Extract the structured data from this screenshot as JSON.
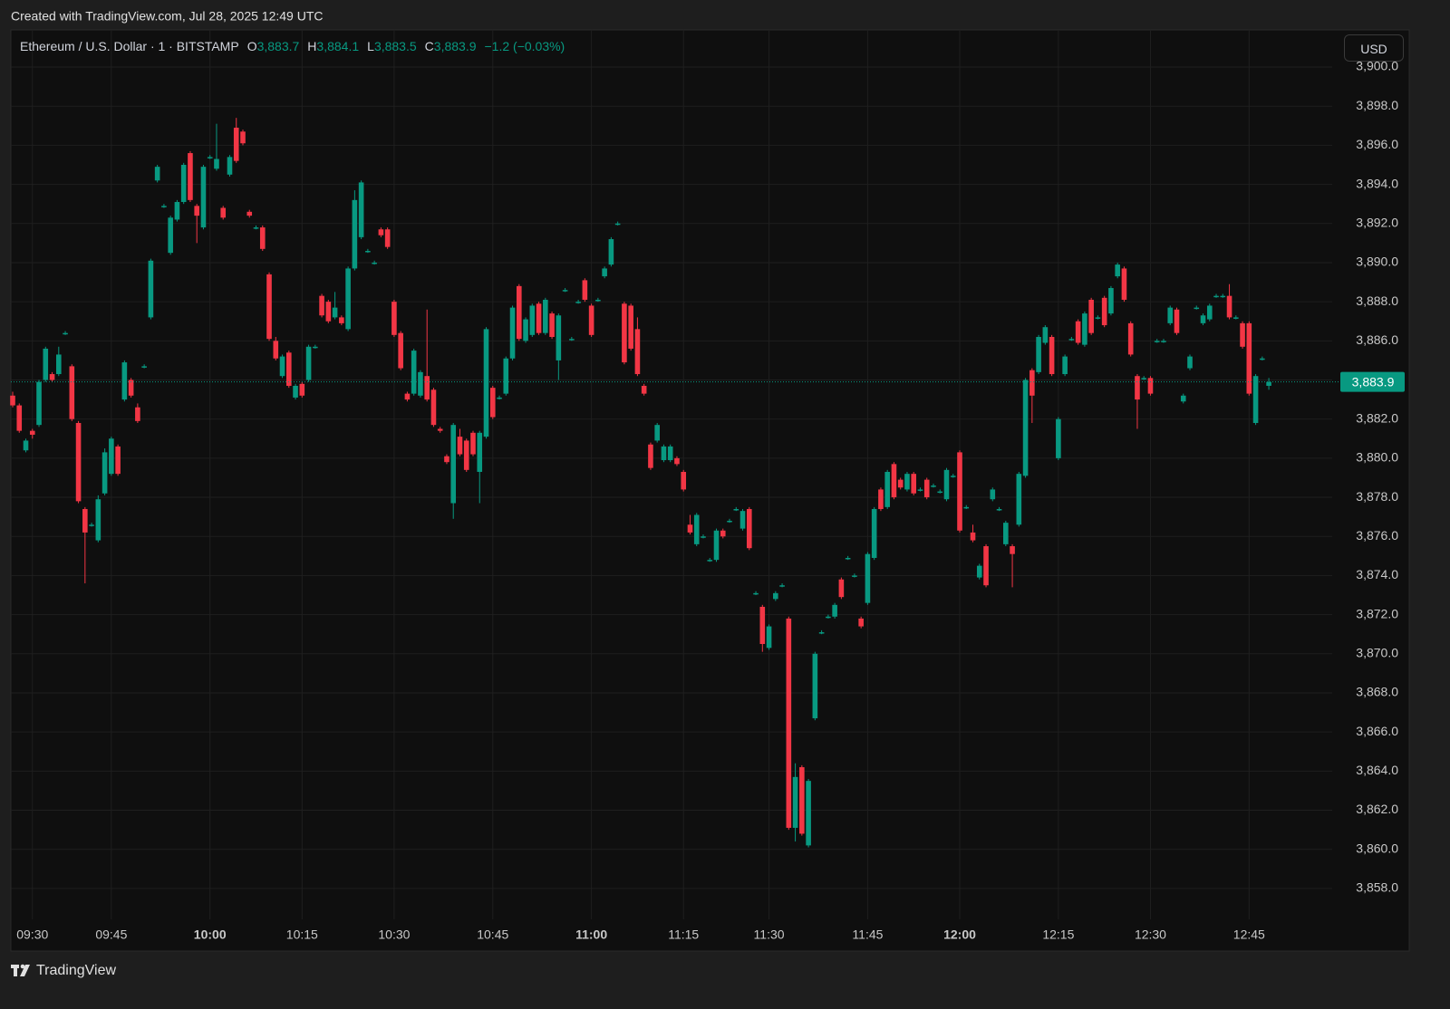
{
  "page": {
    "credit": "Created with TradingView.com, Jul 28, 2025 12:49 UTC",
    "currency": "USD",
    "brand": "TradingView"
  },
  "chart_data": {
    "type": "candlestick",
    "title": "Ethereum / U.S. Dollar · 1 · BITSTAMP",
    "legend": [
      {
        "key": "O",
        "value": 3883.7,
        "label": "3,883.7"
      },
      {
        "key": "H",
        "value": 3884.1,
        "label": "3,884.1"
      },
      {
        "key": "L",
        "value": 3883.5,
        "label": "3,883.5"
      },
      {
        "key": "C",
        "value": 3883.9,
        "label": "3,883.9"
      }
    ],
    "change": {
      "value": -1.2,
      "label": "−1.2 (−0.03%)"
    },
    "last_price": {
      "value": 3883.9,
      "label": "3,883.9"
    },
    "up_color": "#089981",
    "down_color": "#f23645",
    "grid": true,
    "ylim": [
      3854.8,
      3901.9
    ],
    "yticks": [
      {
        "value": 3858,
        "label": "3,858.0"
      },
      {
        "value": 3860,
        "label": "3,860.0"
      },
      {
        "value": 3862,
        "label": "3,862.0"
      },
      {
        "value": 3864,
        "label": "3,864.0"
      },
      {
        "value": 3866,
        "label": "3,866.0"
      },
      {
        "value": 3868,
        "label": "3,868.0"
      },
      {
        "value": 3870,
        "label": "3,870.0"
      },
      {
        "value": 3872,
        "label": "3,872.0"
      },
      {
        "value": 3874,
        "label": "3,874.0"
      },
      {
        "value": 3876,
        "label": "3,876.0"
      },
      {
        "value": 3878,
        "label": "3,878.0"
      },
      {
        "value": 3880,
        "label": "3,880.0"
      },
      {
        "value": 3882,
        "label": "3,882.0"
      },
      {
        "value": 3884,
        "label": "3,884.0"
      },
      {
        "value": 3886,
        "label": "3,886.0"
      },
      {
        "value": 3888,
        "label": "3,888.0"
      },
      {
        "value": 3890,
        "label": "3,890.0"
      },
      {
        "value": 3892,
        "label": "3,892.0"
      },
      {
        "value": 3894,
        "label": "3,894.0"
      },
      {
        "value": 3896,
        "label": "3,896.0"
      },
      {
        "value": 3898,
        "label": "3,898.0"
      },
      {
        "value": 3900,
        "label": "3,900.0"
      }
    ],
    "xticks": [
      {
        "value": 3,
        "label": "09:30"
      },
      {
        "value": 15,
        "label": "09:45"
      },
      {
        "value": 30,
        "label": "10:00"
      },
      {
        "value": 44,
        "label": "10:15"
      },
      {
        "value": 58,
        "label": "10:30"
      },
      {
        "value": 73,
        "label": "10:45"
      },
      {
        "value": 88,
        "label": "11:00"
      },
      {
        "value": 102,
        "label": "11:15"
      },
      {
        "value": 115,
        "label": "11:30"
      },
      {
        "value": 130,
        "label": "11:45"
      },
      {
        "value": 144,
        "label": "12:00"
      },
      {
        "value": 159,
        "label": "12:15"
      },
      {
        "value": 173,
        "label": "12:30"
      },
      {
        "value": 188,
        "label": "12:45"
      }
    ],
    "ohlc": [
      [
        3883.2,
        3883.4,
        3882.6,
        3882.7
      ],
      [
        3882.7,
        3882.8,
        3881.3,
        3881.4
      ],
      [
        3880.4,
        3881.0,
        3880.3,
        3880.9
      ],
      [
        3881.4,
        3881.5,
        3881.0,
        3881.2
      ],
      [
        3881.7,
        3884.0,
        3881.6,
        3883.9
      ],
      [
        3884.0,
        3885.7,
        3883.9,
        3885.6
      ],
      [
        3884.3,
        3884.4,
        3883.9,
        3884.0
      ],
      [
        3884.3,
        3885.7,
        3884.2,
        3885.3
      ],
      [
        3886.4,
        3886.5,
        3886.3,
        3886.4
      ],
      [
        3884.7,
        3884.8,
        3881.9,
        3882.0
      ],
      [
        3881.8,
        3881.9,
        3877.7,
        3877.8
      ],
      [
        3877.4,
        3877.5,
        3873.6,
        3876.2
      ],
      [
        3876.6,
        3876.7,
        3876.5,
        3876.6
      ],
      [
        3875.8,
        3878.1,
        3875.7,
        3877.9
      ],
      [
        3878.2,
        3880.5,
        3878.1,
        3880.3
      ],
      [
        3879.2,
        3881.1,
        3879.1,
        3881.0
      ],
      [
        3880.6,
        3880.7,
        3879.1,
        3879.2
      ],
      [
        3883.0,
        3885.0,
        3882.9,
        3884.9
      ],
      [
        3884.0,
        3884.1,
        3883.1,
        3883.2
      ],
      [
        3882.6,
        3882.8,
        3881.8,
        3881.9
      ],
      [
        3884.7,
        3884.8,
        3884.6,
        3884.7
      ],
      [
        3887.2,
        3890.2,
        3887.1,
        3890.1
      ],
      [
        3894.2,
        3895.0,
        3894.1,
        3894.9
      ],
      [
        3892.9,
        3893.0,
        3892.8,
        3892.9
      ],
      [
        3890.5,
        3892.4,
        3890.4,
        3892.3
      ],
      [
        3892.2,
        3893.2,
        3892.1,
        3893.1
      ],
      [
        3893.1,
        3895.1,
        3893.0,
        3895.0
      ],
      [
        3895.6,
        3895.7,
        3893.1,
        3893.2
      ],
      [
        3892.9,
        3893.0,
        3891.0,
        3892.4
      ],
      [
        3891.8,
        3895.0,
        3891.7,
        3894.9
      ],
      [
        3895.4,
        3895.5,
        3895.3,
        3895.4
      ],
      [
        3894.8,
        3897.1,
        3894.7,
        3895.3
      ],
      [
        3892.8,
        3892.9,
        3892.2,
        3892.3
      ],
      [
        3894.5,
        3895.5,
        3894.4,
        3895.4
      ],
      [
        3896.9,
        3897.4,
        3895.1,
        3895.2
      ],
      [
        3896.7,
        3896.8,
        3896.0,
        3896.1
      ],
      [
        3892.6,
        3892.7,
        3892.3,
        3892.4
      ],
      [
        3891.8,
        3891.9,
        3891.7,
        3891.8
      ],
      [
        3891.8,
        3891.9,
        3890.6,
        3890.7
      ],
      [
        3889.4,
        3889.5,
        3886.0,
        3886.1
      ],
      [
        3886.0,
        3886.2,
        3885.0,
        3885.1
      ],
      [
        3884.2,
        3885.3,
        3884.1,
        3885.2
      ],
      [
        3885.4,
        3885.5,
        3883.6,
        3883.7
      ],
      [
        3883.1,
        3883.8,
        3883.0,
        3883.7
      ],
      [
        3883.8,
        3883.9,
        3883.1,
        3883.2
      ],
      [
        3884.0,
        3885.8,
        3883.9,
        3885.7
      ],
      [
        3885.7,
        3885.8,
        3885.6,
        3885.7
      ],
      [
        3888.3,
        3888.4,
        3887.2,
        3887.3
      ],
      [
        3888.0,
        3888.1,
        3886.9,
        3887.0
      ],
      [
        3887.2,
        3888.5,
        3887.1,
        3887.7
      ],
      [
        3887.2,
        3887.3,
        3886.8,
        3886.9
      ],
      [
        3886.6,
        3889.8,
        3886.5,
        3889.7
      ],
      [
        3889.7,
        3893.7,
        3889.6,
        3893.2
      ],
      [
        3891.3,
        3894.2,
        3891.2,
        3894.1
      ],
      [
        3890.6,
        3890.7,
        3890.5,
        3890.6
      ],
      [
        3890.0,
        3890.1,
        3889.9,
        3890.0
      ],
      [
        3891.7,
        3891.8,
        3891.3,
        3891.4
      ],
      [
        3891.7,
        3891.8,
        3890.7,
        3890.8
      ],
      [
        3888.0,
        3888.1,
        3886.2,
        3886.3
      ],
      [
        3886.4,
        3886.5,
        3884.5,
        3884.6
      ],
      [
        3883.3,
        3883.4,
        3882.9,
        3883.0
      ],
      [
        3883.3,
        3885.6,
        3883.2,
        3885.5
      ],
      [
        3883.2,
        3884.5,
        3883.1,
        3884.4
      ],
      [
        3884.2,
        3887.6,
        3882.9,
        3883.0
      ],
      [
        3883.5,
        3883.6,
        3881.6,
        3881.7
      ],
      [
        3881.5,
        3881.6,
        3881.3,
        3881.4
      ],
      [
        3880.1,
        3880.2,
        3879.7,
        3879.8
      ],
      [
        3877.7,
        3881.8,
        3876.9,
        3881.7
      ],
      [
        3881.1,
        3881.5,
        3880.1,
        3880.2
      ],
      [
        3880.9,
        3881.0,
        3879.3,
        3879.4
      ],
      [
        3881.3,
        3881.4,
        3880.1,
        3880.2
      ],
      [
        3879.3,
        3881.4,
        3877.7,
        3881.3
      ],
      [
        3881.1,
        3886.7,
        3881.0,
        3886.6
      ],
      [
        3883.6,
        3883.7,
        3882.0,
        3882.1
      ],
      [
        3883.1,
        3883.2,
        3883.0,
        3883.1
      ],
      [
        3883.3,
        3885.2,
        3883.2,
        3885.1
      ],
      [
        3885.1,
        3887.8,
        3885.0,
        3887.7
      ],
      [
        3888.8,
        3888.9,
        3886.0,
        3886.1
      ],
      [
        3886.0,
        3887.2,
        3885.9,
        3887.1
      ],
      [
        3886.3,
        3887.9,
        3886.2,
        3887.8
      ],
      [
        3887.9,
        3888.0,
        3886.3,
        3886.4
      ],
      [
        3886.4,
        3888.2,
        3886.3,
        3888.1
      ],
      [
        3887.4,
        3887.5,
        3886.1,
        3886.2
      ],
      [
        3885.0,
        3887.4,
        3884.0,
        3887.3
      ],
      [
        3888.6,
        3888.7,
        3888.5,
        3888.6
      ],
      [
        3886.1,
        3886.2,
        3886.0,
        3886.1
      ],
      [
        3888.0,
        3888.1,
        3887.9,
        3888.0
      ],
      [
        3889.1,
        3889.2,
        3888.0,
        3888.1
      ],
      [
        3887.8,
        3887.9,
        3886.2,
        3886.3
      ],
      [
        3888.1,
        3888.2,
        3888.0,
        3888.1
      ],
      [
        3889.3,
        3889.8,
        3889.2,
        3889.7
      ],
      [
        3889.9,
        3891.3,
        3889.8,
        3891.2
      ],
      [
        3892.0,
        3892.1,
        3891.9,
        3892.0
      ],
      [
        3887.9,
        3888.0,
        3884.8,
        3884.9
      ],
      [
        3887.8,
        3887.9,
        3885.5,
        3885.6
      ],
      [
        3886.6,
        3887.2,
        3884.2,
        3884.3
      ],
      [
        3883.7,
        3883.8,
        3883.2,
        3883.3
      ],
      [
        3880.7,
        3880.8,
        3879.4,
        3879.5
      ],
      [
        3880.9,
        3881.8,
        3880.8,
        3881.7
      ],
      [
        3879.9,
        3880.7,
        3879.8,
        3880.6
      ],
      [
        3879.9,
        3880.7,
        3879.8,
        3880.6
      ],
      [
        3880.0,
        3880.1,
        3879.6,
        3879.7
      ],
      [
        3879.3,
        3879.4,
        3878.3,
        3878.4
      ],
      [
        3876.6,
        3877.1,
        3876.1,
        3876.2
      ],
      [
        3875.6,
        3877.2,
        3875.5,
        3877.1
      ],
      [
        3876.0,
        3876.1,
        3875.9,
        3876.0
      ],
      [
        3874.8,
        3874.9,
        3874.7,
        3874.8
      ],
      [
        3874.8,
        3876.4,
        3874.7,
        3876.3
      ],
      [
        3876.3,
        3876.4,
        3875.9,
        3876.0
      ],
      [
        3876.8,
        3876.9,
        3876.7,
        3876.8
      ],
      [
        3877.4,
        3877.5,
        3877.3,
        3877.4
      ],
      [
        3876.4,
        3877.4,
        3876.3,
        3877.3
      ],
      [
        3877.4,
        3877.5,
        3875.3,
        3875.4
      ],
      [
        3873.1,
        3873.2,
        3873.0,
        3873.1
      ],
      [
        3872.4,
        3872.5,
        3870.1,
        3870.5
      ],
      [
        3870.3,
        3871.5,
        3870.2,
        3871.4
      ],
      [
        3872.8,
        3873.2,
        3872.7,
        3873.1
      ],
      [
        3873.5,
        3873.6,
        3873.4,
        3873.5
      ],
      [
        3871.8,
        3871.9,
        3861.0,
        3861.1
      ],
      [
        3861.1,
        3864.4,
        3860.4,
        3863.7
      ],
      [
        3864.2,
        3864.3,
        3860.7,
        3860.8
      ],
      [
        3860.2,
        3863.6,
        3860.1,
        3863.5
      ],
      [
        3866.7,
        3870.1,
        3866.6,
        3870.0
      ],
      [
        3871.1,
        3871.2,
        3871.0,
        3871.1
      ],
      [
        3871.9,
        3872.0,
        3871.8,
        3871.9
      ],
      [
        3871.9,
        3872.6,
        3871.8,
        3872.5
      ],
      [
        3873.8,
        3873.9,
        3872.8,
        3872.9
      ],
      [
        3874.9,
        3875.0,
        3874.8,
        3874.9
      ],
      [
        3874.0,
        3874.1,
        3873.9,
        3874.0
      ],
      [
        3871.8,
        3871.9,
        3871.3,
        3871.4
      ],
      [
        3872.6,
        3875.2,
        3872.5,
        3875.1
      ],
      [
        3874.9,
        3877.5,
        3874.8,
        3877.4
      ],
      [
        3878.4,
        3878.5,
        3877.3,
        3877.4
      ],
      [
        3877.5,
        3879.4,
        3877.4,
        3879.3
      ],
      [
        3879.7,
        3879.8,
        3877.9,
        3878.0
      ],
      [
        3878.9,
        3879.0,
        3878.4,
        3878.5
      ],
      [
        3878.4,
        3879.3,
        3878.3,
        3879.2
      ],
      [
        3879.2,
        3879.3,
        3878.1,
        3878.2
      ],
      [
        3878.4,
        3878.5,
        3878.3,
        3878.4
      ],
      [
        3878.9,
        3879.0,
        3877.9,
        3878.0
      ],
      [
        3878.6,
        3878.7,
        3878.5,
        3878.6
      ],
      [
        3878.3,
        3878.4,
        3878.2,
        3878.3
      ],
      [
        3877.9,
        3879.5,
        3877.8,
        3879.4
      ],
      [
        3879.1,
        3879.2,
        3879.0,
        3879.1
      ],
      [
        3880.3,
        3880.4,
        3876.2,
        3876.3
      ],
      [
        3877.5,
        3877.6,
        3877.4,
        3877.5
      ],
      [
        3876.2,
        3876.6,
        3875.7,
        3875.8
      ],
      [
        3873.9,
        3874.6,
        3873.8,
        3874.5
      ],
      [
        3875.5,
        3875.6,
        3873.4,
        3873.5
      ],
      [
        3877.9,
        3878.5,
        3877.8,
        3878.4
      ],
      [
        3877.4,
        3877.5,
        3877.3,
        3877.4
      ],
      [
        3875.6,
        3876.8,
        3875.5,
        3876.7
      ],
      [
        3875.5,
        3875.6,
        3873.4,
        3875.1
      ],
      [
        3876.6,
        3879.3,
        3876.5,
        3879.2
      ],
      [
        3879.1,
        3884.1,
        3879.0,
        3884.0
      ],
      [
        3884.5,
        3884.6,
        3881.8,
        3883.2
      ],
      [
        3884.4,
        3886.3,
        3884.3,
        3886.2
      ],
      [
        3885.9,
        3886.8,
        3885.8,
        3886.7
      ],
      [
        3886.2,
        3886.3,
        3884.2,
        3884.3
      ],
      [
        3880.0,
        3882.1,
        3879.9,
        3882.0
      ],
      [
        3884.3,
        3885.3,
        3884.2,
        3885.2
      ],
      [
        3886.1,
        3886.2,
        3886.0,
        3886.1
      ],
      [
        3887.0,
        3887.1,
        3885.8,
        3885.9
      ],
      [
        3885.8,
        3887.5,
        3885.7,
        3887.4
      ],
      [
        3888.1,
        3888.2,
        3886.3,
        3886.4
      ],
      [
        3887.2,
        3887.3,
        3887.1,
        3887.2
      ],
      [
        3888.2,
        3888.3,
        3886.7,
        3886.8
      ],
      [
        3887.4,
        3888.8,
        3887.3,
        3888.7
      ],
      [
        3889.3,
        3890.0,
        3889.2,
        3889.9
      ],
      [
        3889.7,
        3889.8,
        3888.0,
        3888.1
      ],
      [
        3886.9,
        3887.0,
        3885.2,
        3885.3
      ],
      [
        3884.2,
        3884.3,
        3881.5,
        3883.0
      ],
      [
        3884.1,
        3884.2,
        3884.0,
        3884.1
      ],
      [
        3884.1,
        3884.2,
        3883.2,
        3883.3
      ],
      [
        3886.0,
        3886.1,
        3885.9,
        3886.0
      ],
      [
        3886.0,
        3886.1,
        3885.9,
        3886.0
      ],
      [
        3886.9,
        3887.8,
        3886.8,
        3887.7
      ],
      [
        3887.6,
        3887.7,
        3886.3,
        3886.4
      ],
      [
        3882.9,
        3883.3,
        3882.8,
        3883.2
      ],
      [
        3884.6,
        3885.3,
        3884.5,
        3885.2
      ],
      [
        3887.7,
        3887.8,
        3887.6,
        3887.7
      ],
      [
        3886.9,
        3887.4,
        3886.8,
        3887.3
      ],
      [
        3887.1,
        3887.9,
        3887.0,
        3887.8
      ],
      [
        3888.3,
        3888.4,
        3888.2,
        3888.3
      ],
      [
        3888.3,
        3888.4,
        3888.2,
        3888.3
      ],
      [
        3888.3,
        3888.9,
        3887.1,
        3887.2
      ],
      [
        3887.2,
        3887.3,
        3887.1,
        3887.2
      ],
      [
        3886.9,
        3887.0,
        3885.6,
        3885.7
      ],
      [
        3886.9,
        3887.0,
        3883.2,
        3883.3
      ],
      [
        3881.8,
        3884.3,
        3881.7,
        3884.2
      ],
      [
        3885.1,
        3885.2,
        3885.0,
        3885.1
      ],
      [
        3883.7,
        3884.1,
        3883.5,
        3883.9
      ]
    ]
  }
}
